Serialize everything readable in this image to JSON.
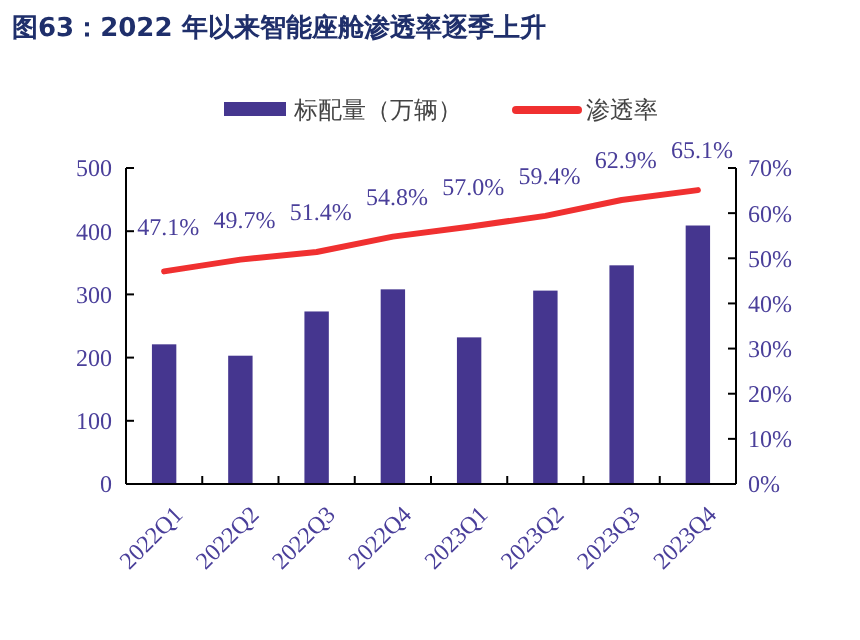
{
  "chart_data": {
    "type": "bar",
    "title": "图63：2022 年以来智能座舱渗透率逐季上升",
    "categories": [
      "2022Q1",
      "2022Q2",
      "2022Q3",
      "2022Q4",
      "2023Q1",
      "2023Q2",
      "2023Q3",
      "2023Q4"
    ],
    "series": [
      {
        "name": "标配量（万辆）",
        "color": "#45368f",
        "values": [
          221,
          203,
          273,
          308,
          232,
          306,
          346,
          409
        ]
      },
      {
        "name": "渗透率",
        "type": "line",
        "axis": "y2",
        "color": "#f03030",
        "values": [
          47.1,
          49.7,
          51.4,
          54.8,
          57.0,
          59.4,
          62.9,
          65.1
        ],
        "value_labels": [
          "47.1%",
          "49.7%",
          "51.4%",
          "54.8%",
          "57.0%",
          "59.4%",
          "62.9%",
          "65.1%"
        ]
      }
    ],
    "ylim": [
      0,
      500
    ],
    "yticks": [
      0,
      100,
      200,
      300,
      400,
      500
    ],
    "y2lim": [
      0,
      70
    ],
    "y2ticks": [
      {
        "value": 0,
        "label": "0%"
      },
      {
        "value": 10,
        "label": "10%"
      },
      {
        "value": 20,
        "label": "20%"
      },
      {
        "value": 30,
        "label": "30%"
      },
      {
        "value": 40,
        "label": "40%"
      },
      {
        "value": 50,
        "label": "50%"
      },
      {
        "value": 60,
        "label": "60%"
      },
      {
        "value": 70,
        "label": "70%"
      }
    ],
    "legend": "top",
    "grid": false
  }
}
